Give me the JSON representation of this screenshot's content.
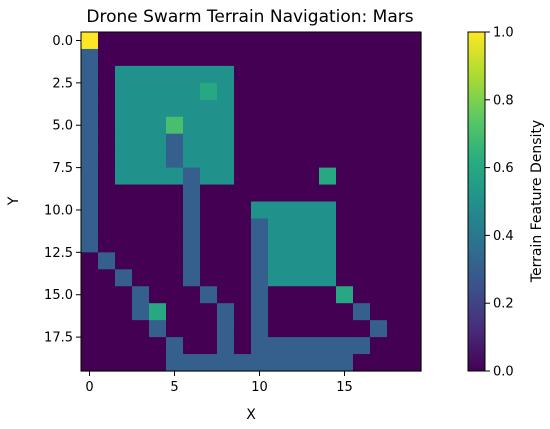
{
  "chart_data": {
    "type": "heatmap",
    "title": "Drone Swarm Terrain Navigation: Mars",
    "xlabel": "X",
    "ylabel": "Y",
    "colorbar_label": "Terrain Feature Density",
    "colormap": "viridis",
    "vmin": 0.0,
    "vmax": 1.0,
    "xlim": [
      -0.5,
      19.5
    ],
    "ylim": [
      19.5,
      -0.5
    ],
    "x_ticks": [
      0,
      5,
      10,
      15
    ],
    "x_tick_labels": [
      "0",
      "5",
      "10",
      "15"
    ],
    "y_ticks": [
      0.0,
      2.5,
      5.0,
      7.5,
      10.0,
      12.5,
      15.0,
      17.5
    ],
    "y_tick_labels": [
      "0.0",
      "2.5",
      "5.0",
      "7.5",
      "10.0",
      "12.5",
      "15.0",
      "17.5"
    ],
    "colorbar_ticks": [
      0.0,
      0.2,
      0.4,
      0.6,
      0.8,
      1.0
    ],
    "colorbar_tick_labels": [
      "0.0",
      "0.2",
      "0.4",
      "0.6",
      "0.8",
      "1.0"
    ],
    "values": [
      [
        1.0,
        0,
        0,
        0,
        0,
        0,
        0,
        0,
        0,
        0,
        0,
        0,
        0,
        0,
        0,
        0,
        0,
        0,
        0,
        0
      ],
      [
        0.3,
        0,
        0,
        0,
        0,
        0,
        0,
        0,
        0,
        0,
        0,
        0,
        0,
        0,
        0,
        0,
        0,
        0,
        0,
        0
      ],
      [
        0.3,
        0,
        0.5,
        0.5,
        0.5,
        0.5,
        0.5,
        0.5,
        0.5,
        0,
        0,
        0,
        0,
        0,
        0,
        0,
        0,
        0,
        0,
        0
      ],
      [
        0.3,
        0,
        0.5,
        0.5,
        0.5,
        0.5,
        0.5,
        0.6,
        0.5,
        0,
        0,
        0,
        0,
        0,
        0,
        0,
        0,
        0,
        0,
        0
      ],
      [
        0.3,
        0,
        0.5,
        0.5,
        0.5,
        0.5,
        0.5,
        0.5,
        0.5,
        0,
        0,
        0,
        0,
        0,
        0,
        0,
        0,
        0,
        0,
        0
      ],
      [
        0.3,
        0,
        0.5,
        0.5,
        0.5,
        0.7,
        0.5,
        0.5,
        0.5,
        0,
        0,
        0,
        0,
        0,
        0,
        0,
        0,
        0,
        0,
        0
      ],
      [
        0.3,
        0,
        0.5,
        0.5,
        0.5,
        0.3,
        0.5,
        0.5,
        0.5,
        0,
        0,
        0,
        0,
        0,
        0,
        0,
        0,
        0,
        0,
        0
      ],
      [
        0.3,
        0,
        0.5,
        0.5,
        0.5,
        0.3,
        0.5,
        0.5,
        0.5,
        0,
        0,
        0,
        0,
        0,
        0,
        0,
        0,
        0,
        0,
        0
      ],
      [
        0.3,
        0,
        0.5,
        0.5,
        0.5,
        0.5,
        0.3,
        0.5,
        0.5,
        0,
        0,
        0,
        0,
        0,
        0.6,
        0,
        0,
        0,
        0,
        0
      ],
      [
        0.3,
        0,
        0,
        0,
        0,
        0,
        0.3,
        0,
        0,
        0,
        0,
        0,
        0,
        0,
        0,
        0,
        0,
        0,
        0,
        0
      ],
      [
        0.3,
        0,
        0,
        0,
        0,
        0,
        0.3,
        0,
        0,
        0,
        0.5,
        0.5,
        0.5,
        0.5,
        0.5,
        0,
        0,
        0,
        0,
        0
      ],
      [
        0.3,
        0,
        0,
        0,
        0,
        0,
        0.3,
        0,
        0,
        0,
        0.3,
        0.5,
        0.5,
        0.5,
        0.5,
        0,
        0,
        0,
        0,
        0
      ],
      [
        0.3,
        0,
        0,
        0,
        0,
        0,
        0.3,
        0,
        0,
        0,
        0.3,
        0.5,
        0.5,
        0.5,
        0.5,
        0,
        0,
        0,
        0,
        0
      ],
      [
        0,
        0.3,
        0,
        0,
        0,
        0,
        0.3,
        0,
        0,
        0,
        0.3,
        0.5,
        0.5,
        0.5,
        0.5,
        0,
        0,
        0,
        0,
        0
      ],
      [
        0,
        0,
        0.3,
        0,
        0,
        0,
        0.3,
        0,
        0,
        0,
        0.3,
        0.5,
        0.5,
        0.5,
        0.5,
        0,
        0,
        0,
        0,
        0
      ],
      [
        0,
        0,
        0,
        0.3,
        0,
        0,
        0,
        0.3,
        0,
        0,
        0.3,
        0,
        0,
        0,
        0,
        0.6,
        0,
        0,
        0,
        0
      ],
      [
        0,
        0,
        0,
        0.3,
        0.6,
        0,
        0,
        0,
        0.3,
        0,
        0.3,
        0,
        0,
        0,
        0,
        0,
        0.3,
        0,
        0,
        0
      ],
      [
        0,
        0,
        0,
        0,
        0.3,
        0,
        0,
        0,
        0.3,
        0,
        0.3,
        0,
        0,
        0,
        0,
        0,
        0,
        0.3,
        0,
        0
      ],
      [
        0,
        0,
        0,
        0,
        0,
        0.3,
        0,
        0,
        0.3,
        0,
        0.3,
        0.3,
        0.3,
        0.3,
        0.3,
        0.3,
        0.3,
        0,
        0,
        0
      ],
      [
        0,
        0,
        0,
        0,
        0,
        0.3,
        0.3,
        0.3,
        0.3,
        0.3,
        0.3,
        0.3,
        0.3,
        0.3,
        0.3,
        0.3,
        0,
        0,
        0,
        0
      ]
    ]
  }
}
